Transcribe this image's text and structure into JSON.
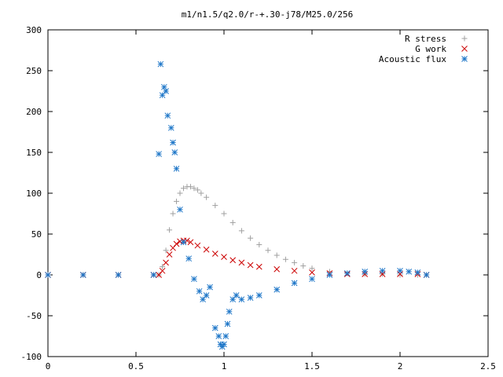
{
  "chart_data": {
    "type": "scatter",
    "title": "m1/n1.5/q2.0/r-+.30-j78/M25.0/256",
    "xlabel": "",
    "ylabel": "",
    "xlim": [
      0,
      2.5
    ],
    "ylim": [
      -100,
      300
    ],
    "xticks": [
      0,
      0.5,
      1,
      1.5,
      2,
      2.5
    ],
    "xtick_labels": [
      "0",
      "0.5",
      "1",
      "1.5",
      "2",
      "2.5"
    ],
    "yticks": [
      -100,
      -50,
      0,
      50,
      100,
      150,
      200,
      250,
      300
    ],
    "ytick_labels": [
      "-100",
      "-50",
      "0",
      "50",
      "100",
      "150",
      "200",
      "250",
      "300"
    ],
    "grid": false,
    "legend_position": "top-right",
    "series": [
      {
        "name": "R stress",
        "marker": "plus",
        "color": "#a0a0a0",
        "x": [
          0.0,
          0.2,
          0.4,
          0.6,
          0.63,
          0.65,
          0.67,
          0.69,
          0.71,
          0.73,
          0.75,
          0.77,
          0.79,
          0.81,
          0.83,
          0.85,
          0.87,
          0.9,
          0.95,
          1.0,
          1.05,
          1.1,
          1.15,
          1.2,
          1.25,
          1.3,
          1.35,
          1.4,
          1.45,
          1.5,
          1.6,
          1.7,
          1.8,
          1.9,
          2.0,
          2.1,
          2.15
        ],
        "y": [
          0,
          0,
          0,
          0,
          0,
          10,
          30,
          55,
          75,
          90,
          100,
          106,
          108,
          108,
          106,
          104,
          100,
          95,
          85,
          75,
          64,
          54,
          45,
          37,
          30,
          24,
          19,
          15,
          11,
          8,
          4,
          2,
          1,
          1,
          0,
          0,
          0
        ]
      },
      {
        "name": "G work",
        "marker": "cross",
        "color": "#cc0000",
        "x": [
          0.0,
          0.2,
          0.4,
          0.6,
          0.63,
          0.65,
          0.67,
          0.69,
          0.71,
          0.73,
          0.75,
          0.77,
          0.79,
          0.81,
          0.85,
          0.9,
          0.95,
          1.0,
          1.05,
          1.1,
          1.15,
          1.2,
          1.3,
          1.4,
          1.5,
          1.6,
          1.7,
          1.8,
          1.9,
          2.0,
          2.1,
          2.15
        ],
        "y": [
          0,
          0,
          0,
          0,
          0,
          5,
          15,
          25,
          33,
          38,
          41,
          42,
          42,
          40,
          36,
          31,
          26,
          22,
          18,
          15,
          12,
          10,
          7,
          5,
          3,
          2,
          1,
          1,
          1,
          1,
          1,
          0
        ]
      },
      {
        "name": "Acoustic flux",
        "marker": "star",
        "color": "#1f77c8",
        "x": [
          0.0,
          0.2,
          0.4,
          0.6,
          0.63,
          0.64,
          0.65,
          0.66,
          0.67,
          0.68,
          0.7,
          0.71,
          0.72,
          0.73,
          0.75,
          0.77,
          0.8,
          0.83,
          0.86,
          0.88,
          0.9,
          0.92,
          0.95,
          0.97,
          0.98,
          0.99,
          1.0,
          1.01,
          1.02,
          1.03,
          1.05,
          1.07,
          1.1,
          1.15,
          1.2,
          1.3,
          1.4,
          1.5,
          1.6,
          1.7,
          1.8,
          1.9,
          2.0,
          2.05,
          2.1,
          2.15
        ],
        "y": [
          0,
          0,
          0,
          0,
          148,
          258,
          220,
          230,
          225,
          195,
          180,
          162,
          150,
          130,
          80,
          40,
          20,
          -5,
          -20,
          -30,
          -25,
          -15,
          -65,
          -75,
          -85,
          -88,
          -85,
          -75,
          -60,
          -45,
          -30,
          -25,
          -30,
          -28,
          -25,
          -18,
          -10,
          -5,
          0,
          2,
          4,
          5,
          5,
          4,
          3,
          0
        ]
      }
    ]
  }
}
